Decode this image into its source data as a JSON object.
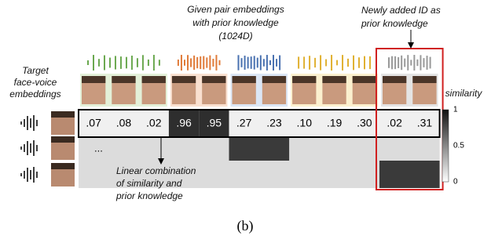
{
  "annotations": {
    "given": [
      "Given pair embeddings",
      "with prior knowledge",
      "(1024D)"
    ],
    "newly": [
      "Newly added ID as",
      "prior knowledge"
    ],
    "target": [
      "Target",
      "face-voice",
      "embeddings"
    ],
    "linear": [
      "Linear combination",
      "of similarity and",
      "prior knowledge"
    ]
  },
  "similarity_row": [
    ".07",
    ".08",
    ".02",
    ".96",
    ".95",
    ".27",
    ".23",
    ".10",
    ".19",
    ".30",
    ".02",
    ".31"
  ],
  "ellipsis": "...",
  "colorbar": {
    "label": "similarity",
    "ticks": [
      "1",
      "0.5",
      "0"
    ]
  },
  "caption": "(b)"
}
